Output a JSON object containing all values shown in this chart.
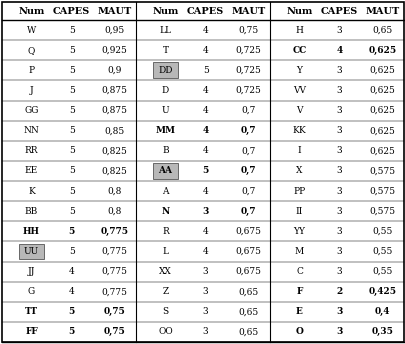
{
  "col1": [
    [
      "W",
      "5",
      "0,95"
    ],
    [
      "Q",
      "5",
      "0,925"
    ],
    [
      "P",
      "5",
      "0,9"
    ],
    [
      "J",
      "5",
      "0,875"
    ],
    [
      "GG",
      "5",
      "0,875"
    ],
    [
      "NN",
      "5",
      "0,85"
    ],
    [
      "RR",
      "5",
      "0,825"
    ],
    [
      "EE",
      "5",
      "0,825"
    ],
    [
      "K",
      "5",
      "0,8"
    ],
    [
      "BB",
      "5",
      "0,8"
    ],
    [
      "HH",
      "5",
      "0,775"
    ],
    [
      "UU",
      "5",
      "0,775"
    ],
    [
      "JJ",
      "4",
      "0,775"
    ],
    [
      "G",
      "4",
      "0,775"
    ],
    [
      "TT",
      "5",
      "0,75"
    ],
    [
      "FF",
      "5",
      "0,75"
    ]
  ],
  "col2": [
    [
      "LL",
      "4",
      "0,75"
    ],
    [
      "T",
      "4",
      "0,725"
    ],
    [
      "DD",
      "5",
      "0,725"
    ],
    [
      "D",
      "4",
      "0,725"
    ],
    [
      "U",
      "4",
      "0,7"
    ],
    [
      "MM",
      "4",
      "0,7"
    ],
    [
      "B",
      "4",
      "0,7"
    ],
    [
      "AA",
      "5",
      "0,7"
    ],
    [
      "A",
      "4",
      "0,7"
    ],
    [
      "N",
      "3",
      "0,7"
    ],
    [
      "R",
      "4",
      "0,675"
    ],
    [
      "L",
      "4",
      "0,675"
    ],
    [
      "XX",
      "3",
      "0,675"
    ],
    [
      "Z",
      "3",
      "0,65"
    ],
    [
      "S",
      "3",
      "0,65"
    ],
    [
      "OO",
      "3",
      "0,65"
    ]
  ],
  "col3": [
    [
      "H",
      "3",
      "0,65"
    ],
    [
      "CC",
      "4",
      "0,625"
    ],
    [
      "Y",
      "3",
      "0,625"
    ],
    [
      "VV",
      "3",
      "0,625"
    ],
    [
      "V",
      "3",
      "0,625"
    ],
    [
      "KK",
      "3",
      "0,625"
    ],
    [
      "I",
      "3",
      "0,625"
    ],
    [
      "X",
      "3",
      "0,575"
    ],
    [
      "PP",
      "3",
      "0,575"
    ],
    [
      "II",
      "3",
      "0,575"
    ],
    [
      "YY",
      "3",
      "0,55"
    ],
    [
      "M",
      "3",
      "0,55"
    ],
    [
      "C",
      "3",
      "0,55"
    ],
    [
      "F",
      "2",
      "0,425"
    ],
    [
      "E",
      "3",
      "0,4"
    ],
    [
      "O",
      "3",
      "0,35"
    ]
  ],
  "bold_col1": [
    "HH",
    "TT",
    "FF"
  ],
  "bold_col2": [
    "MM",
    "N",
    "AA"
  ],
  "bold_col3": [
    "CC",
    "F",
    "E",
    "O"
  ],
  "highlight_bg": [
    "DD",
    "AA",
    "UU"
  ],
  "highlight_bg_color": "#b8b8b8",
  "header": [
    "Num",
    "CAPES",
    "MAUT"
  ],
  "n_rows": 16,
  "n_panels": 3
}
